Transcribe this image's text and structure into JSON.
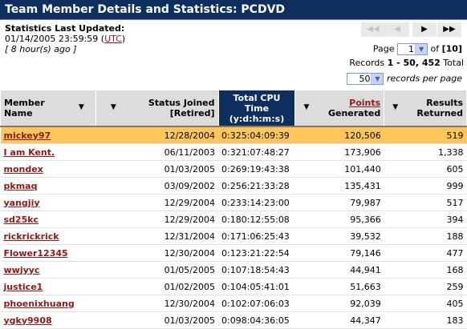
{
  "title": "Team Member Details and Statistics: PCDVD",
  "stats": {
    "heading": "Statistics Last Updated:",
    "timestamp": "01/14/2005 23:59:59",
    "tz": "UTC",
    "ago": "8 hour(s) ago"
  },
  "pager": {
    "first": "◀◀",
    "prev": "◀",
    "next": "▶",
    "last": "▶▶",
    "page_label": "Page",
    "page_value": "1",
    "of_label": "of",
    "total_pages": "[10]",
    "records_label": "Records",
    "records_range": "1 - 50, 452",
    "records_total": "Total",
    "per_page_value": "50",
    "per_page_label": "records per page"
  },
  "columns": {
    "member": "Member Name",
    "joined": "Status Joined [Retired]",
    "cpu_line1": "Total CPU Time",
    "cpu_line2": "(y:d:h:m:s)",
    "points": "Points",
    "points2": "Generated",
    "results": "Results Returned"
  },
  "rows": [
    {
      "member": "mickey97",
      "joined": "12/28/2004",
      "cpu": "0:325:04:09:39",
      "points": "120,506",
      "results": "519"
    },
    {
      "member": "I am Kent.",
      "joined": "06/11/2003",
      "cpu": "0:321:07:48:27",
      "points": "173,906",
      "results": "1,338"
    },
    {
      "member": "mondex",
      "joined": "01/03/2005",
      "cpu": "0:269:19:43:38",
      "points": "101,440",
      "results": "605"
    },
    {
      "member": "pkmaq",
      "joined": "03/09/2002",
      "cpu": "0:256:21:33:28",
      "points": "135,431",
      "results": "999"
    },
    {
      "member": "yangjiy",
      "joined": "12/29/2004",
      "cpu": "0:233:14:23:00",
      "points": "79,987",
      "results": "517"
    },
    {
      "member": "sd25kc",
      "joined": "12/29/2004",
      "cpu": "0:180:12:55:08",
      "points": "95,366",
      "results": "394"
    },
    {
      "member": "rickrickrick",
      "joined": "12/31/2004",
      "cpu": "0:171:06:25:43",
      "points": "39,532",
      "results": "188"
    },
    {
      "member": "Flower12345",
      "joined": "12/30/2004",
      "cpu": "0:123:21:22:54",
      "points": "79,146",
      "results": "477"
    },
    {
      "member": "wwjyyc",
      "joined": "01/05/2005",
      "cpu": "0:107:18:54:43",
      "points": "44,941",
      "results": "168"
    },
    {
      "member": "justice1",
      "joined": "01/02/2005",
      "cpu": "0:104:05:41:01",
      "points": "51,663",
      "results": "259"
    },
    {
      "member": "phoenixhuang",
      "joined": "12/30/2004",
      "cpu": "0:102:07:06:03",
      "points": "92,039",
      "results": "405"
    },
    {
      "member": "ygky9908",
      "joined": "01/03/2005",
      "cpu": "0:098:04:36:05",
      "points": "44,347",
      "results": "183"
    }
  ],
  "colors": {
    "title_bg": "#0e2f5e",
    "highlight": "#ffc65a",
    "link": "#8b1a1a"
  }
}
